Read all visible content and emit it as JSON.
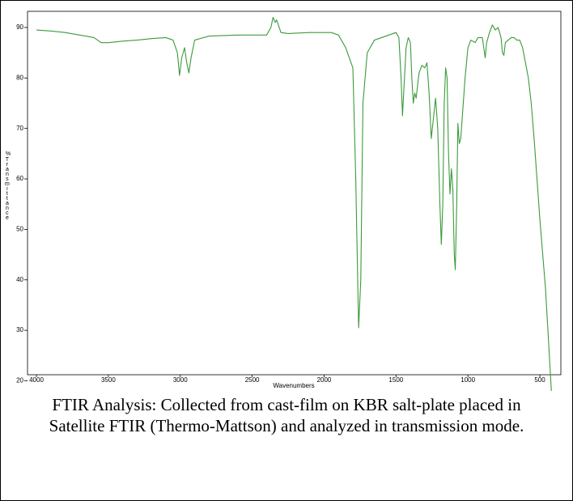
{
  "chart_data": {
    "type": "line",
    "x_label": "Wavenumbers",
    "y_label_symbol": "%",
    "y_label": "Transmittance",
    "caption": "FTIR Analysis: Collected from cast-film on KBR salt-plate placed in Satellite FTIR (Thermo-Mattson) and analyzed in transmission mode.",
    "color": "#3c9a3c",
    "xlim": [
      4062,
      354
    ],
    "ylim": [
      21.2,
      93.2
    ],
    "xticks": [
      4000,
      3500,
      3000,
      2500,
      2000,
      1500,
      1000,
      500
    ],
    "yticks": [
      20,
      30,
      40,
      50,
      60,
      70,
      80,
      90
    ],
    "x": [
      4000,
      3900,
      3800,
      3700,
      3600,
      3550,
      3500,
      3400,
      3300,
      3200,
      3100,
      3050,
      3020,
      3005,
      2990,
      2970,
      2955,
      2940,
      2925,
      2900,
      2800,
      2600,
      2400,
      2370,
      2355,
      2340,
      2330,
      2300,
      2250,
      2100,
      2000,
      1950,
      1900,
      1850,
      1800,
      1780,
      1760,
      1745,
      1730,
      1700,
      1650,
      1600,
      1550,
      1500,
      1480,
      1465,
      1455,
      1445,
      1430,
      1415,
      1400,
      1390,
      1380,
      1370,
      1360,
      1340,
      1320,
      1300,
      1285,
      1270,
      1255,
      1240,
      1225,
      1210,
      1195,
      1185,
      1175,
      1165,
      1155,
      1145,
      1135,
      1125,
      1115,
      1105,
      1095,
      1088,
      1078,
      1070,
      1060,
      1050,
      1040,
      1020,
      1000,
      980,
      950,
      930,
      900,
      880,
      870,
      850,
      830,
      810,
      790,
      770,
      760,
      750,
      740,
      720,
      700,
      680,
      660,
      640,
      620,
      600,
      580,
      560,
      540,
      520,
      500,
      480,
      460,
      440,
      420
    ],
    "values": [
      89.5,
      89.3,
      89,
      88.5,
      88,
      87,
      87,
      87.3,
      87.5,
      87.8,
      88,
      87.5,
      85,
      80.5,
      84,
      86,
      83,
      81,
      84,
      87.5,
      88.3,
      88.5,
      88.5,
      90,
      92,
      91,
      91.5,
      89,
      88.8,
      89,
      89,
      89,
      88.5,
      86,
      82,
      60,
      30.5,
      40,
      75,
      85,
      87.5,
      88,
      88.5,
      89,
      88,
      80,
      72.5,
      78,
      86,
      88,
      87,
      80,
      75,
      77,
      76,
      81,
      82.5,
      82,
      83,
      77,
      68,
      72,
      76,
      70,
      55,
      47,
      55,
      75,
      82,
      80,
      65,
      57,
      62,
      58,
      45,
      42,
      55,
      71,
      67,
      68,
      72,
      80,
      86,
      87.5,
      87,
      88,
      88,
      84,
      87,
      89,
      90.5,
      89.5,
      90,
      88,
      85,
      84.5,
      87,
      87.5,
      88,
      88,
      87.5,
      87.5,
      86,
      83,
      80,
      75,
      68,
      60,
      52,
      45,
      38,
      28,
      18
    ]
  }
}
